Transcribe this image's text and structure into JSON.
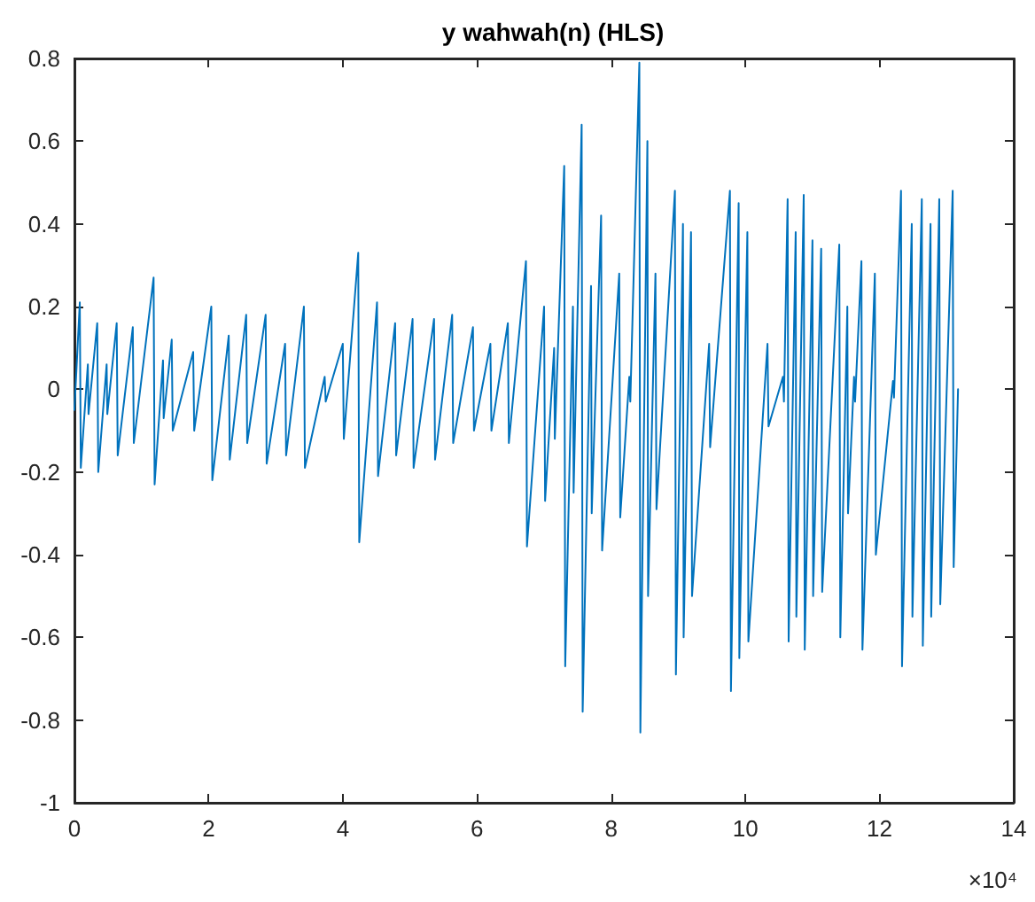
{
  "chart_data": {
    "type": "line",
    "title": "y wahwah(n) (HLS)",
    "annotations": [
      "×10⁴"
    ],
    "xlim": [
      0,
      14
    ],
    "xticks": [
      0,
      2,
      4,
      6,
      8,
      10,
      12,
      14
    ],
    "ylim": [
      -1,
      0.8
    ],
    "yticks": [
      -1,
      -0.8,
      -0.6,
      -0.4,
      -0.2,
      0,
      0.2,
      0.4,
      0.6,
      0.8
    ],
    "marker": "none",
    "line_style": "solid",
    "series": [
      {
        "color": "#0072bd",
        "x": [
          0,
          0.08,
          0.095,
          0.2,
          0.21,
          0.34,
          0.355,
          0.48,
          0.49,
          0.63,
          0.645,
          0.87,
          0.885,
          1.18,
          1.195,
          1.32,
          1.33,
          1.45,
          1.465,
          1.77,
          1.785,
          2.04,
          2.055,
          2.3,
          2.315,
          2.56,
          2.575,
          2.85,
          2.865,
          3.14,
          3.155,
          3.42,
          3.435,
          3.73,
          3.745,
          4,
          4.015,
          4.23,
          4.245,
          4.51,
          4.525,
          4.78,
          4.795,
          5.04,
          5.055,
          5.36,
          5.375,
          5.63,
          5.645,
          5.94,
          5.955,
          6.2,
          6.215,
          6.46,
          6.475,
          6.73,
          6.745,
          7,
          7.015,
          7.15,
          7.16,
          7.3,
          7.315,
          7.43,
          7.44,
          7.56,
          7.575,
          7.7,
          7.71,
          7.85,
          7.865,
          8.12,
          8.135,
          8.27,
          8.285,
          8.42,
          8.435,
          8.54,
          8.55,
          8.66,
          8.675,
          8.95,
          8.965,
          9.07,
          9.08,
          9.19,
          9.205,
          9.46,
          9.475,
          9.77,
          9.785,
          9.9,
          9.91,
          10.03,
          10.045,
          10.33,
          10.345,
          10.56,
          10.575,
          10.63,
          10.645,
          10.75,
          10.76,
          10.87,
          10.885,
          11,
          11.01,
          11.13,
          11.145,
          11.4,
          11.415,
          11.52,
          11.53,
          11.62,
          11.635,
          11.73,
          11.745,
          11.93,
          11.945,
          12.2,
          12.215,
          12.32,
          12.335,
          12.48,
          12.49,
          12.63,
          12.645,
          12.76,
          12.77,
          12.89,
          12.905,
          13.09,
          13.105,
          13.17
        ],
        "values": [
          -0.05,
          0.21,
          -0.19,
          0.06,
          -0.06,
          0.16,
          -0.2,
          0.06,
          -0.06,
          0.16,
          -0.16,
          0.15,
          -0.13,
          0.27,
          -0.23,
          0.07,
          -0.07,
          0.12,
          -0.1,
          0.09,
          -0.1,
          0.2,
          -0.22,
          0.13,
          -0.17,
          0.18,
          -0.13,
          0.18,
          -0.18,
          0.11,
          -0.16,
          0.2,
          -0.19,
          0.03,
          -0.03,
          0.11,
          -0.12,
          0.33,
          -0.37,
          0.21,
          -0.21,
          0.16,
          -0.16,
          0.17,
          -0.19,
          0.17,
          -0.17,
          0.18,
          -0.13,
          0.15,
          -0.1,
          0.11,
          -0.1,
          0.16,
          -0.13,
          0.31,
          -0.38,
          0.2,
          -0.27,
          0.1,
          -0.12,
          0.54,
          -0.67,
          0.2,
          -0.25,
          0.64,
          -0.78,
          0.25,
          -0.3,
          0.42,
          -0.39,
          0.28,
          -0.31,
          0.03,
          -0.03,
          0.79,
          -0.83,
          0.6,
          -0.5,
          0.28,
          -0.29,
          0.48,
          -0.69,
          0.4,
          -0.6,
          0.38,
          -0.5,
          0.11,
          -0.14,
          0.48,
          -0.73,
          0.45,
          -0.65,
          0.38,
          -0.61,
          0.11,
          -0.09,
          0.03,
          -0.03,
          0.46,
          -0.61,
          0.38,
          -0.55,
          0.47,
          -0.63,
          0.36,
          -0.5,
          0.34,
          -0.49,
          0.35,
          -0.6,
          0.2,
          -0.3,
          0.03,
          -0.03,
          0.31,
          -0.63,
          0.28,
          -0.4,
          0.02,
          -0.02,
          0.48,
          -0.67,
          0.4,
          -0.55,
          0.46,
          -0.62,
          0.4,
          -0.55,
          0.46,
          -0.52,
          0.48,
          -0.43,
          0
        ]
      }
    ]
  }
}
